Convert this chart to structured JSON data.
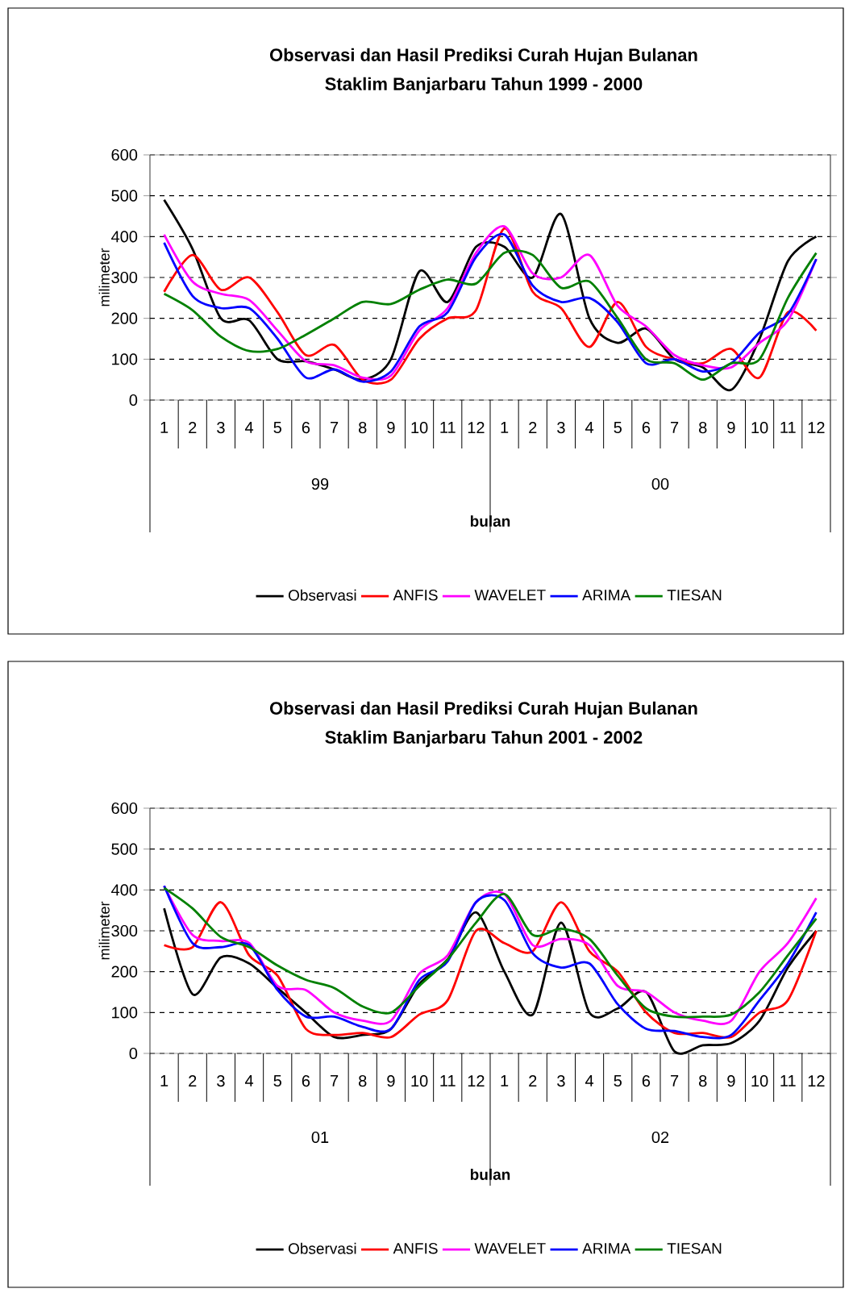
{
  "chart_data": [
    {
      "type": "line",
      "title": "Observasi dan Hasil Prediksi Curah Hujan Bulanan",
      "subtitle": "Staklim Banjarbaru Tahun 1999 - 2000",
      "xlabel": "bulan",
      "ylabel": "milimeter",
      "categories": [
        "1",
        "2",
        "3",
        "4",
        "5",
        "6",
        "7",
        "8",
        "9",
        "10",
        "11",
        "12",
        "1",
        "2",
        "3",
        "4",
        "5",
        "6",
        "7",
        "8",
        "9",
        "10",
        "11",
        "12"
      ],
      "annotations": [
        "99",
        "00"
      ],
      "ylim": [
        0,
        600
      ],
      "yticks": [
        0,
        100,
        200,
        300,
        400,
        500,
        600
      ],
      "grid": "y",
      "legend": "bottom",
      "marker": "none",
      "line_style": "solid",
      "series": [
        {
          "name": "Observasi",
          "color": "#000000",
          "values": [
            490,
            370,
            200,
            195,
            100,
            95,
            75,
            50,
            100,
            315,
            240,
            375,
            375,
            300,
            455,
            200,
            140,
            175,
            100,
            80,
            25,
            150,
            340,
            400
          ]
        },
        {
          "name": "ANFIS",
          "color": "#ff0000",
          "values": [
            265,
            355,
            270,
            300,
            215,
            110,
            135,
            50,
            50,
            150,
            200,
            220,
            420,
            265,
            225,
            130,
            240,
            130,
            100,
            90,
            125,
            55,
            215,
            170
          ]
        },
        {
          "name": "WAVELET",
          "color": "#ff00ff",
          "values": [
            405,
            290,
            260,
            245,
            170,
            95,
            85,
            55,
            60,
            170,
            225,
            360,
            425,
            310,
            300,
            355,
            230,
            180,
            110,
            85,
            80,
            140,
            195,
            345
          ]
        },
        {
          "name": "ARIMA",
          "color": "#0000ff",
          "values": [
            385,
            255,
            225,
            225,
            150,
            55,
            75,
            45,
            70,
            180,
            215,
            350,
            405,
            280,
            240,
            250,
            190,
            90,
            100,
            70,
            90,
            165,
            210,
            345
          ]
        },
        {
          "name": "TIESAN",
          "color": "#008000",
          "values": [
            260,
            220,
            155,
            120,
            125,
            160,
            200,
            240,
            235,
            270,
            295,
            285,
            360,
            355,
            275,
            290,
            200,
            100,
            90,
            50,
            90,
            100,
            250,
            360
          ]
        }
      ]
    },
    {
      "type": "line",
      "title": "Observasi dan Hasil Prediksi Curah Hujan Bulanan",
      "subtitle": "Staklim Banjarbaru Tahun 2001 - 2002",
      "xlabel": "bulan",
      "ylabel": "milimeter",
      "categories": [
        "1",
        "2",
        "3",
        "4",
        "5",
        "6",
        "7",
        "8",
        "9",
        "10",
        "11",
        "12",
        "1",
        "2",
        "3",
        "4",
        "5",
        "6",
        "7",
        "8",
        "9",
        "10",
        "11",
        "12"
      ],
      "annotations": [
        "01",
        "02"
      ],
      "ylim": [
        0,
        600
      ],
      "yticks": [
        0,
        100,
        200,
        300,
        400,
        500,
        600
      ],
      "grid": "y",
      "legend": "bottom",
      "marker": "none",
      "line_style": "solid",
      "series": [
        {
          "name": "Observasi",
          "color": "#000000",
          "values": [
            355,
            145,
            235,
            220,
            160,
            100,
            40,
            45,
            60,
            170,
            230,
            345,
            200,
            95,
            320,
            100,
            110,
            150,
            5,
            20,
            25,
            80,
            210,
            300
          ]
        },
        {
          "name": "ANFIS",
          "color": "#ff0000",
          "values": [
            265,
            260,
            370,
            240,
            190,
            60,
            45,
            50,
            40,
            95,
            130,
            300,
            270,
            250,
            370,
            250,
            200,
            100,
            50,
            50,
            40,
            100,
            130,
            300
          ]
        },
        {
          "name": "WAVELET",
          "color": "#ff00ff",
          "values": [
            410,
            290,
            275,
            270,
            165,
            155,
            100,
            80,
            80,
            195,
            240,
            370,
            390,
            265,
            280,
            265,
            165,
            150,
            100,
            80,
            80,
            200,
            270,
            380
          ]
        },
        {
          "name": "ARIMA",
          "color": "#0000ff",
          "values": [
            410,
            270,
            260,
            265,
            155,
            90,
            90,
            65,
            60,
            180,
            225,
            370,
            375,
            245,
            210,
            220,
            120,
            60,
            55,
            40,
            45,
            130,
            220,
            345
          ]
        },
        {
          "name": "TIESAN",
          "color": "#008000",
          "values": [
            405,
            355,
            285,
            260,
            215,
            180,
            160,
            115,
            100,
            165,
            230,
            320,
            390,
            290,
            305,
            280,
            190,
            110,
            90,
            90,
            95,
            150,
            240,
            330
          ]
        }
      ]
    }
  ]
}
